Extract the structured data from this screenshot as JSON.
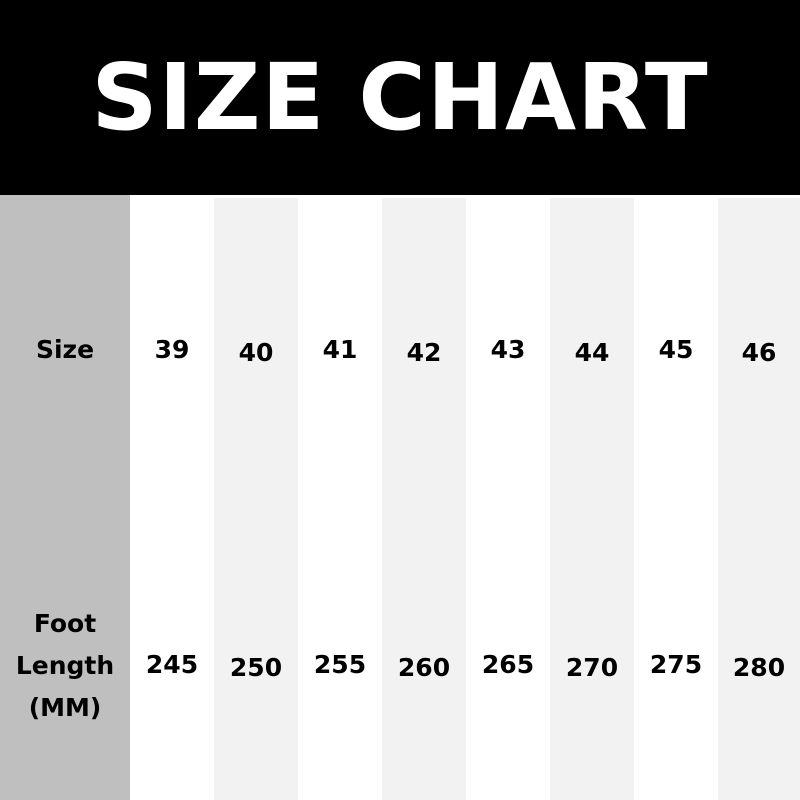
{
  "title": "SIZE CHART",
  "row_labels": {
    "size": "Size",
    "foot_length": [
      "Foot",
      "Length",
      "(MM)"
    ]
  },
  "sizes": [
    "39",
    "40",
    "41",
    "42",
    "43",
    "44",
    "45",
    "46"
  ],
  "foot_lengths": [
    "245",
    "250",
    "255",
    "260",
    "265",
    "270",
    "275",
    "280"
  ],
  "colors": {
    "banner": "#000000",
    "label_column": "#bfbfbf",
    "alt_column": "#f2f2f2"
  }
}
